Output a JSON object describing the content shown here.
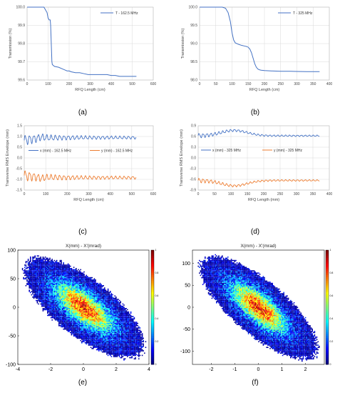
{
  "panel_labels": [
    "(a)",
    "(b)",
    "(c)",
    "(d)",
    "(e)",
    "(f)"
  ],
  "chart_data": [
    {
      "id": "a",
      "type": "line",
      "xlabel": "RFQ Length (cm)",
      "ylabel": "Transmission (%)",
      "xlim": [
        0,
        600
      ],
      "ylim": [
        99.6,
        100.0
      ],
      "xticks": [
        "0",
        "100",
        "200",
        "300",
        "400",
        "500",
        "600"
      ],
      "yticks": [
        "99.6",
        "99.7",
        "99.8",
        "99.9",
        "100.0"
      ],
      "legend_position": "top-right",
      "grid": true,
      "series": [
        {
          "name": "T - 162.5 MHz",
          "color": "#4472C4",
          "x": [
            0,
            80,
            85,
            95,
            100,
            105,
            110,
            112,
            115,
            118,
            120,
            125,
            130,
            150,
            170,
            180,
            190,
            200,
            210,
            230,
            250,
            270,
            290,
            300,
            320,
            340,
            360,
            380,
            400,
            420,
            440,
            460,
            480,
            500,
            520
          ],
          "y": [
            100.0,
            100.0,
            99.99,
            99.97,
            99.94,
            99.93,
            99.93,
            99.9,
            99.8,
            99.7,
            99.685,
            99.68,
            99.675,
            99.67,
            99.66,
            99.655,
            99.65,
            99.65,
            99.645,
            99.64,
            99.64,
            99.635,
            99.63,
            99.63,
            99.63,
            99.63,
            99.63,
            99.63,
            99.625,
            99.625,
            99.62,
            99.62,
            99.62,
            99.62,
            99.62
          ]
        }
      ]
    },
    {
      "id": "b",
      "type": "line",
      "xlabel": "RFQ Length (cm)",
      "ylabel": "Transmission (%)",
      "xlim": [
        0,
        400
      ],
      "ylim": [
        98.0,
        100.0
      ],
      "xticks": [
        "0",
        "50",
        "100",
        "150",
        "200",
        "250",
        "300",
        "350",
        "400"
      ],
      "yticks": [
        "98.0",
        "98.5",
        "99.0",
        "99.5",
        "100.0"
      ],
      "legend_position": "top-right",
      "grid": true,
      "series": [
        {
          "name": "T - 325 MHz",
          "color": "#4472C4",
          "x": [
            0,
            70,
            80,
            88,
            95,
            100,
            105,
            110,
            120,
            130,
            140,
            145,
            150,
            155,
            160,
            165,
            170,
            175,
            180,
            185,
            190,
            200,
            220,
            250,
            280,
            300,
            330,
            360,
            370
          ],
          "y": [
            100.0,
            100.0,
            99.97,
            99.85,
            99.6,
            99.3,
            99.1,
            99.02,
            98.98,
            98.95,
            98.93,
            98.92,
            98.9,
            98.85,
            98.75,
            98.6,
            98.45,
            98.35,
            98.3,
            98.28,
            98.27,
            98.26,
            98.25,
            98.24,
            98.24,
            98.235,
            98.23,
            98.23,
            98.23
          ]
        }
      ]
    },
    {
      "id": "c",
      "type": "line",
      "xlabel": "RFQ Length (cm)",
      "ylabel": "Transverse RMS Envelope (mm)",
      "xlim": [
        0,
        600
      ],
      "ylim": [
        -1.5,
        1.5
      ],
      "xticks": [
        "0",
        "100",
        "200",
        "300",
        "400",
        "500",
        "600"
      ],
      "yticks": [
        "-1.5",
        "-1.0",
        "-0.5",
        "0.0",
        "0.5",
        "1.0",
        "1.5"
      ],
      "grid": true,
      "series": [
        {
          "name": "x (mm) - 162.5 MHz",
          "color": "#4472C4",
          "legend_position": "upper-middle",
          "x_range": [
            0,
            520
          ],
          "mean": 0.95,
          "mean_start": 0.82,
          "amp_start": 0.26,
          "amp_end": 0.07,
          "period": 20
        },
        {
          "name": "y (mm) - 162.5 MHz",
          "color": "#ED7D31",
          "legend_position": "upper-middle",
          "x_range": [
            0,
            520
          ],
          "mean": -0.92,
          "mean_start": -0.82,
          "amp_start": 0.26,
          "amp_end": 0.07,
          "period": 20
        }
      ]
    },
    {
      "id": "d",
      "type": "line",
      "xlabel": "RFQ Length (mm)",
      "ylabel": "Transverse RMS Envelope (mm)",
      "xlim": [
        0,
        400
      ],
      "ylim": [
        -0.9,
        0.9
      ],
      "xticks": [
        "0",
        "50",
        "100",
        "150",
        "200",
        "250",
        "300",
        "350",
        "400"
      ],
      "yticks": [
        "-0.9",
        "-0.6",
        "-0.3",
        "0.0",
        "0.3",
        "0.6",
        "0.9"
      ],
      "grid": true,
      "series": [
        {
          "name": "x (mm) - 325 MHz",
          "color": "#4472C4",
          "legend_position": "middle",
          "x_range": [
            0,
            370
          ],
          "mean": 0.62,
          "bump": 0.15,
          "amp_start": 0.07,
          "amp_end": 0.02,
          "period": 12
        },
        {
          "name": "y (mm) - 325 MHz",
          "color": "#ED7D31",
          "legend_position": "middle",
          "x_range": [
            0,
            370
          ],
          "mean": -0.63,
          "bump": -0.15,
          "amp_start": 0.07,
          "amp_end": 0.02,
          "period": 12
        }
      ]
    },
    {
      "id": "e",
      "type": "heatmap",
      "title": "X(mm) - X'(mrad)",
      "xlim": [
        -4,
        4
      ],
      "ylim": [
        -100,
        100
      ],
      "xticks": [
        "-4",
        "-2",
        "0",
        "2",
        "4"
      ],
      "yticks": [
        "100",
        "50",
        "0",
        "-50",
        "-100"
      ],
      "colorbar": {
        "range": [
          0,
          1
        ],
        "ticks": [
          "1",
          "0.8",
          "0.6",
          "0.4",
          "0.2",
          "0"
        ]
      },
      "distribution": {
        "sx": 1.25,
        "sy": 30,
        "rho": -0.72
      }
    },
    {
      "id": "f",
      "type": "heatmap",
      "title": "X(mm) - X'(mrad)",
      "xlim": [
        -2.8,
        2.8
      ],
      "ylim": [
        -130,
        130
      ],
      "xticks": [
        "-2",
        "-1",
        "0",
        "1",
        "2"
      ],
      "yticks": [
        "100",
        "50",
        "0",
        "-50",
        "-100"
      ],
      "colorbar": {
        "range": [
          0,
          1
        ],
        "ticks": [
          "1",
          "0.8",
          "0.6",
          "0.4",
          "0.2",
          "0"
        ]
      },
      "distribution": {
        "sx": 0.85,
        "sy": 40,
        "rho": -0.76
      }
    }
  ]
}
